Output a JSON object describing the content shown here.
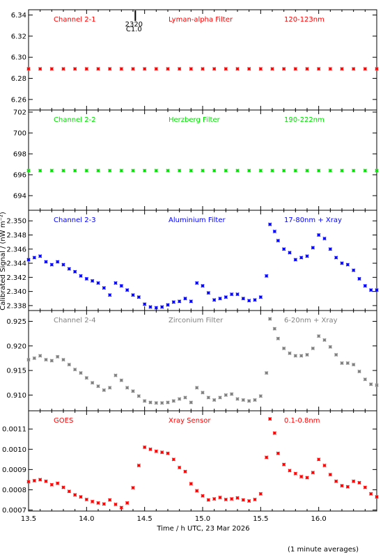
{
  "figure": {
    "ylabel": "Calibrated Signal / (nW m⁻²)",
    "xlabel": "Time / h UTC, 23 Mar 2026",
    "note": "(1 minute averages)",
    "marker_label": "2320",
    "marker_sublabel": "C1.0",
    "marker_x": 14.42
  },
  "chart_data": [
    {
      "type": "scatter",
      "panel": "Channel 2-1",
      "title": "Lyman-alpha Filter",
      "band": "120-123nm",
      "color": "#ff0000",
      "xlim": [
        13.5,
        16.5
      ],
      "ylim": [
        6.25,
        6.345
      ],
      "yticks": [
        6.26,
        6.28,
        6.3,
        6.32,
        6.34
      ],
      "ytick_labels": [
        "6.26",
        "6.28",
        "6.30",
        "6.32",
        "6.34"
      ],
      "xticks": [
        13.5,
        14.0,
        14.5,
        15.0,
        15.5,
        16.0
      ],
      "xtick_labels": [],
      "points": [
        [
          13.5,
          6.289
        ],
        [
          13.6,
          6.289
        ],
        [
          13.7,
          6.289
        ],
        [
          13.8,
          6.289
        ],
        [
          13.9,
          6.289
        ],
        [
          14.0,
          6.289
        ],
        [
          14.1,
          6.289
        ],
        [
          14.2,
          6.289
        ],
        [
          14.3,
          6.289
        ],
        [
          14.4,
          6.289
        ],
        [
          14.5,
          6.289
        ],
        [
          14.6,
          6.289
        ],
        [
          14.7,
          6.289
        ],
        [
          14.8,
          6.289
        ],
        [
          14.9,
          6.289
        ],
        [
          15.0,
          6.289
        ],
        [
          15.1,
          6.289
        ],
        [
          15.2,
          6.289
        ],
        [
          15.3,
          6.289
        ],
        [
          15.4,
          6.289
        ],
        [
          15.5,
          6.289
        ],
        [
          15.6,
          6.289
        ],
        [
          15.7,
          6.289
        ],
        [
          15.8,
          6.289
        ],
        [
          15.9,
          6.289
        ],
        [
          16.0,
          6.289
        ],
        [
          16.1,
          6.289
        ],
        [
          16.2,
          6.289
        ],
        [
          16.3,
          6.289
        ],
        [
          16.4,
          6.289
        ],
        [
          16.5,
          6.289
        ]
      ]
    },
    {
      "type": "scatter",
      "panel": "Channel 2-2",
      "title": "Herzberg Filter",
      "band": "190-222nm",
      "color": "#00e000",
      "xlim": [
        13.5,
        16.5
      ],
      "ylim": [
        692.6,
        702.2
      ],
      "yticks": [
        694,
        696,
        698,
        700,
        702
      ],
      "ytick_labels": [
        "694",
        "696",
        "698",
        "700",
        "702"
      ],
      "xticks": [
        13.5,
        14.0,
        14.5,
        15.0,
        15.5,
        16.0
      ],
      "xtick_labels": [],
      "points": [
        [
          13.5,
          696.4
        ],
        [
          13.6,
          696.4
        ],
        [
          13.7,
          696.4
        ],
        [
          13.8,
          696.4
        ],
        [
          13.9,
          696.4
        ],
        [
          14.0,
          696.4
        ],
        [
          14.1,
          696.4
        ],
        [
          14.2,
          696.4
        ],
        [
          14.3,
          696.4
        ],
        [
          14.4,
          696.4
        ],
        [
          14.5,
          696.4
        ],
        [
          14.6,
          696.4
        ],
        [
          14.7,
          696.4
        ],
        [
          14.8,
          696.4
        ],
        [
          14.9,
          696.4
        ],
        [
          15.0,
          696.4
        ],
        [
          15.1,
          696.4
        ],
        [
          15.2,
          696.4
        ],
        [
          15.3,
          696.4
        ],
        [
          15.4,
          696.4
        ],
        [
          15.5,
          696.4
        ],
        [
          15.6,
          696.4
        ],
        [
          15.7,
          696.4
        ],
        [
          15.8,
          696.4
        ],
        [
          15.9,
          696.4
        ],
        [
          16.0,
          696.4
        ],
        [
          16.1,
          696.4
        ],
        [
          16.2,
          696.4
        ],
        [
          16.3,
          696.4
        ],
        [
          16.4,
          696.4
        ],
        [
          16.5,
          696.4
        ]
      ]
    },
    {
      "type": "scatter",
      "panel": "Channel 2-3",
      "title": "Aluminium Filter",
      "band": "17-80nm + Xray",
      "color": "#0000ff",
      "xlim": [
        13.5,
        16.5
      ],
      "ylim": [
        2.3373,
        2.3515
      ],
      "yticks": [
        2.338,
        2.34,
        2.342,
        2.344,
        2.346,
        2.348,
        2.35
      ],
      "ytick_labels": [
        "2.338",
        "2.340",
        "2.342",
        "2.344",
        "2.346",
        "2.348",
        "2.350"
      ],
      "xticks": [
        13.5,
        14.0,
        14.5,
        15.0,
        15.5,
        16.0
      ],
      "xtick_labels": [],
      "points": [
        [
          13.5,
          2.3445
        ],
        [
          13.55,
          2.3448
        ],
        [
          13.6,
          2.345
        ],
        [
          13.65,
          2.3442
        ],
        [
          13.7,
          2.3438
        ],
        [
          13.75,
          2.3442
        ],
        [
          13.8,
          2.3438
        ],
        [
          13.85,
          2.3432
        ],
        [
          13.9,
          2.3428
        ],
        [
          13.95,
          2.3422
        ],
        [
          14.0,
          2.3418
        ],
        [
          14.05,
          2.3415
        ],
        [
          14.1,
          2.3412
        ],
        [
          14.15,
          2.3405
        ],
        [
          14.2,
          2.3395
        ],
        [
          14.25,
          2.3412
        ],
        [
          14.3,
          2.3408
        ],
        [
          14.35,
          2.3402
        ],
        [
          14.4,
          2.3395
        ],
        [
          14.45,
          2.3392
        ],
        [
          14.5,
          2.3382
        ],
        [
          14.55,
          2.3378
        ],
        [
          14.6,
          2.3377
        ],
        [
          14.65,
          2.3378
        ],
        [
          14.7,
          2.3381
        ],
        [
          14.75,
          2.3385
        ],
        [
          14.8,
          2.3386
        ],
        [
          14.85,
          2.339
        ],
        [
          14.9,
          2.3386
        ],
        [
          14.95,
          2.3412
        ],
        [
          15.0,
          2.3408
        ],
        [
          15.05,
          2.3398
        ],
        [
          15.1,
          2.3388
        ],
        [
          15.15,
          2.339
        ],
        [
          15.2,
          2.3392
        ],
        [
          15.25,
          2.3396
        ],
        [
          15.3,
          2.3396
        ],
        [
          15.35,
          2.339
        ],
        [
          15.4,
          2.3387
        ],
        [
          15.45,
          2.3388
        ],
        [
          15.5,
          2.3392
        ],
        [
          15.55,
          2.3422
        ],
        [
          15.58,
          2.3495
        ],
        [
          15.62,
          2.3485
        ],
        [
          15.65,
          2.3472
        ],
        [
          15.7,
          2.346
        ],
        [
          15.75,
          2.3455
        ],
        [
          15.8,
          2.3445
        ],
        [
          15.85,
          2.3448
        ],
        [
          15.9,
          2.345
        ],
        [
          15.95,
          2.3462
        ],
        [
          16.0,
          2.348
        ],
        [
          16.05,
          2.3475
        ],
        [
          16.1,
          2.346
        ],
        [
          16.15,
          2.3448
        ],
        [
          16.2,
          2.344
        ],
        [
          16.25,
          2.3438
        ],
        [
          16.3,
          2.343
        ],
        [
          16.35,
          2.3418
        ],
        [
          16.4,
          2.3408
        ],
        [
          16.45,
          2.3402
        ],
        [
          16.5,
          2.3402
        ]
      ]
    },
    {
      "type": "scatter",
      "panel": "Channel 2-4",
      "title": "Zirconium Filter",
      "band": "6-20nm + Xray",
      "color": "#808080",
      "xlim": [
        13.5,
        16.5
      ],
      "ylim": [
        2.9055,
        0.9272
      ],
      "ylim_note": "",
      "yticks": [
        0.91,
        0.915,
        0.92,
        0.925
      ],
      "ytick_labels": [
        "0.910",
        "0.915",
        "0.920",
        "0.925"
      ],
      "xticks": [
        13.5,
        14.0,
        14.5,
        15.0,
        15.5,
        16.0
      ],
      "xtick_labels": [],
      "points": [
        [
          13.5,
          0.9172
        ],
        [
          13.55,
          0.9175
        ],
        [
          13.6,
          0.918
        ],
        [
          13.65,
          0.9172
        ],
        [
          13.7,
          0.917
        ],
        [
          13.75,
          0.9178
        ],
        [
          13.8,
          0.9172
        ],
        [
          13.85,
          0.9162
        ],
        [
          13.9,
          0.9152
        ],
        [
          13.95,
          0.9145
        ],
        [
          14.0,
          0.9135
        ],
        [
          14.05,
          0.9125
        ],
        [
          14.1,
          0.9118
        ],
        [
          14.15,
          0.911
        ],
        [
          14.2,
          0.9115
        ],
        [
          14.25,
          0.914
        ],
        [
          14.3,
          0.913
        ],
        [
          14.35,
          0.9115
        ],
        [
          14.4,
          0.9108
        ],
        [
          14.45,
          0.9098
        ],
        [
          14.5,
          0.9088
        ],
        [
          14.55,
          0.9085
        ],
        [
          14.6,
          0.9084
        ],
        [
          14.65,
          0.9084
        ],
        [
          14.7,
          0.9085
        ],
        [
          14.75,
          0.9088
        ],
        [
          14.8,
          0.9092
        ],
        [
          14.85,
          0.9095
        ],
        [
          14.9,
          0.9085
        ],
        [
          14.95,
          0.9115
        ],
        [
          15.0,
          0.9105
        ],
        [
          15.05,
          0.9095
        ],
        [
          15.1,
          0.909
        ],
        [
          15.15,
          0.9095
        ],
        [
          15.2,
          0.91
        ],
        [
          15.25,
          0.9102
        ],
        [
          15.3,
          0.9092
        ],
        [
          15.35,
          0.909
        ],
        [
          15.4,
          0.9088
        ],
        [
          15.45,
          0.909
        ],
        [
          15.5,
          0.9098
        ],
        [
          15.55,
          0.9145
        ],
        [
          15.58,
          0.9255
        ],
        [
          15.62,
          0.9235
        ],
        [
          15.65,
          0.9215
        ],
        [
          15.7,
          0.9195
        ],
        [
          15.75,
          0.9185
        ],
        [
          15.8,
          0.918
        ],
        [
          15.85,
          0.918
        ],
        [
          15.9,
          0.9182
        ],
        [
          15.95,
          0.9195
        ],
        [
          16.0,
          0.922
        ],
        [
          16.05,
          0.9212
        ],
        [
          16.1,
          0.9198
        ],
        [
          16.15,
          0.9182
        ],
        [
          16.2,
          0.9165
        ],
        [
          16.25,
          0.9165
        ],
        [
          16.3,
          0.9162
        ],
        [
          16.35,
          0.9148
        ],
        [
          16.4,
          0.9132
        ],
        [
          16.45,
          0.9122
        ],
        [
          16.5,
          0.912
        ]
      ]
    },
    {
      "type": "scatter",
      "panel": "GOES",
      "title": "Xray Sensor",
      "band": "0.1-0.8nm",
      "color": "#ff0000",
      "xlim": [
        13.5,
        16.5
      ],
      "ylim": [
        0.000695,
        0.00119
      ],
      "yticks": [
        0.0007,
        0.0008,
        0.0009,
        0.001,
        0.0011
      ],
      "ytick_labels": [
        "0.0007",
        "0.0008",
        "0.0009",
        "0.0010",
        "0.0011"
      ],
      "xticks": [
        13.5,
        14.0,
        14.5,
        15.0,
        15.5,
        16.0
      ],
      "xtick_labels": [
        "13.5",
        "14.0",
        "14.5",
        "15.0",
        "15.5",
        "16.0"
      ],
      "points": [
        [
          13.5,
          0.00084
        ],
        [
          13.55,
          0.000845
        ],
        [
          13.6,
          0.00085
        ],
        [
          13.65,
          0.000842
        ],
        [
          13.7,
          0.000825
        ],
        [
          13.75,
          0.000832
        ],
        [
          13.8,
          0.000812
        ],
        [
          13.85,
          0.000792
        ],
        [
          13.9,
          0.000775
        ],
        [
          13.95,
          0.000765
        ],
        [
          14.0,
          0.000752
        ],
        [
          14.05,
          0.000742
        ],
        [
          14.1,
          0.000735
        ],
        [
          14.15,
          0.00073
        ],
        [
          14.2,
          0.00075
        ],
        [
          14.25,
          0.000728
        ],
        [
          14.3,
          0.000712
        ],
        [
          14.35,
          0.000735
        ],
        [
          14.4,
          0.00081
        ],
        [
          14.45,
          0.00092
        ],
        [
          14.5,
          0.00101
        ],
        [
          14.55,
          0.001
        ],
        [
          14.6,
          0.00099
        ],
        [
          14.65,
          0.000985
        ],
        [
          14.7,
          0.00098
        ],
        [
          14.75,
          0.00095
        ],
        [
          14.8,
          0.00091
        ],
        [
          14.85,
          0.00089
        ],
        [
          14.9,
          0.00083
        ],
        [
          14.95,
          0.000795
        ],
        [
          15.0,
          0.00077
        ],
        [
          15.05,
          0.00075
        ],
        [
          15.1,
          0.000755
        ],
        [
          15.15,
          0.000762
        ],
        [
          15.2,
          0.000752
        ],
        [
          15.25,
          0.000755
        ],
        [
          15.3,
          0.00076
        ],
        [
          15.35,
          0.00075
        ],
        [
          15.4,
          0.000745
        ],
        [
          15.45,
          0.000752
        ],
        [
          15.5,
          0.00078
        ],
        [
          15.55,
          0.00096
        ],
        [
          15.58,
          0.00115
        ],
        [
          15.62,
          0.00108
        ],
        [
          15.65,
          0.00098
        ],
        [
          15.7,
          0.000925
        ],
        [
          15.75,
          0.000895
        ],
        [
          15.8,
          0.00088
        ],
        [
          15.85,
          0.000865
        ],
        [
          15.9,
          0.00086
        ],
        [
          15.95,
          0.000885
        ],
        [
          16.0,
          0.00095
        ],
        [
          16.05,
          0.00092
        ],
        [
          16.1,
          0.000875
        ],
        [
          16.15,
          0.000842
        ],
        [
          16.2,
          0.00082
        ],
        [
          16.25,
          0.000815
        ],
        [
          16.3,
          0.000842
        ],
        [
          16.35,
          0.000835
        ],
        [
          16.4,
          0.000812
        ],
        [
          16.45,
          0.00078
        ],
        [
          16.5,
          0.000765
        ]
      ]
    }
  ]
}
